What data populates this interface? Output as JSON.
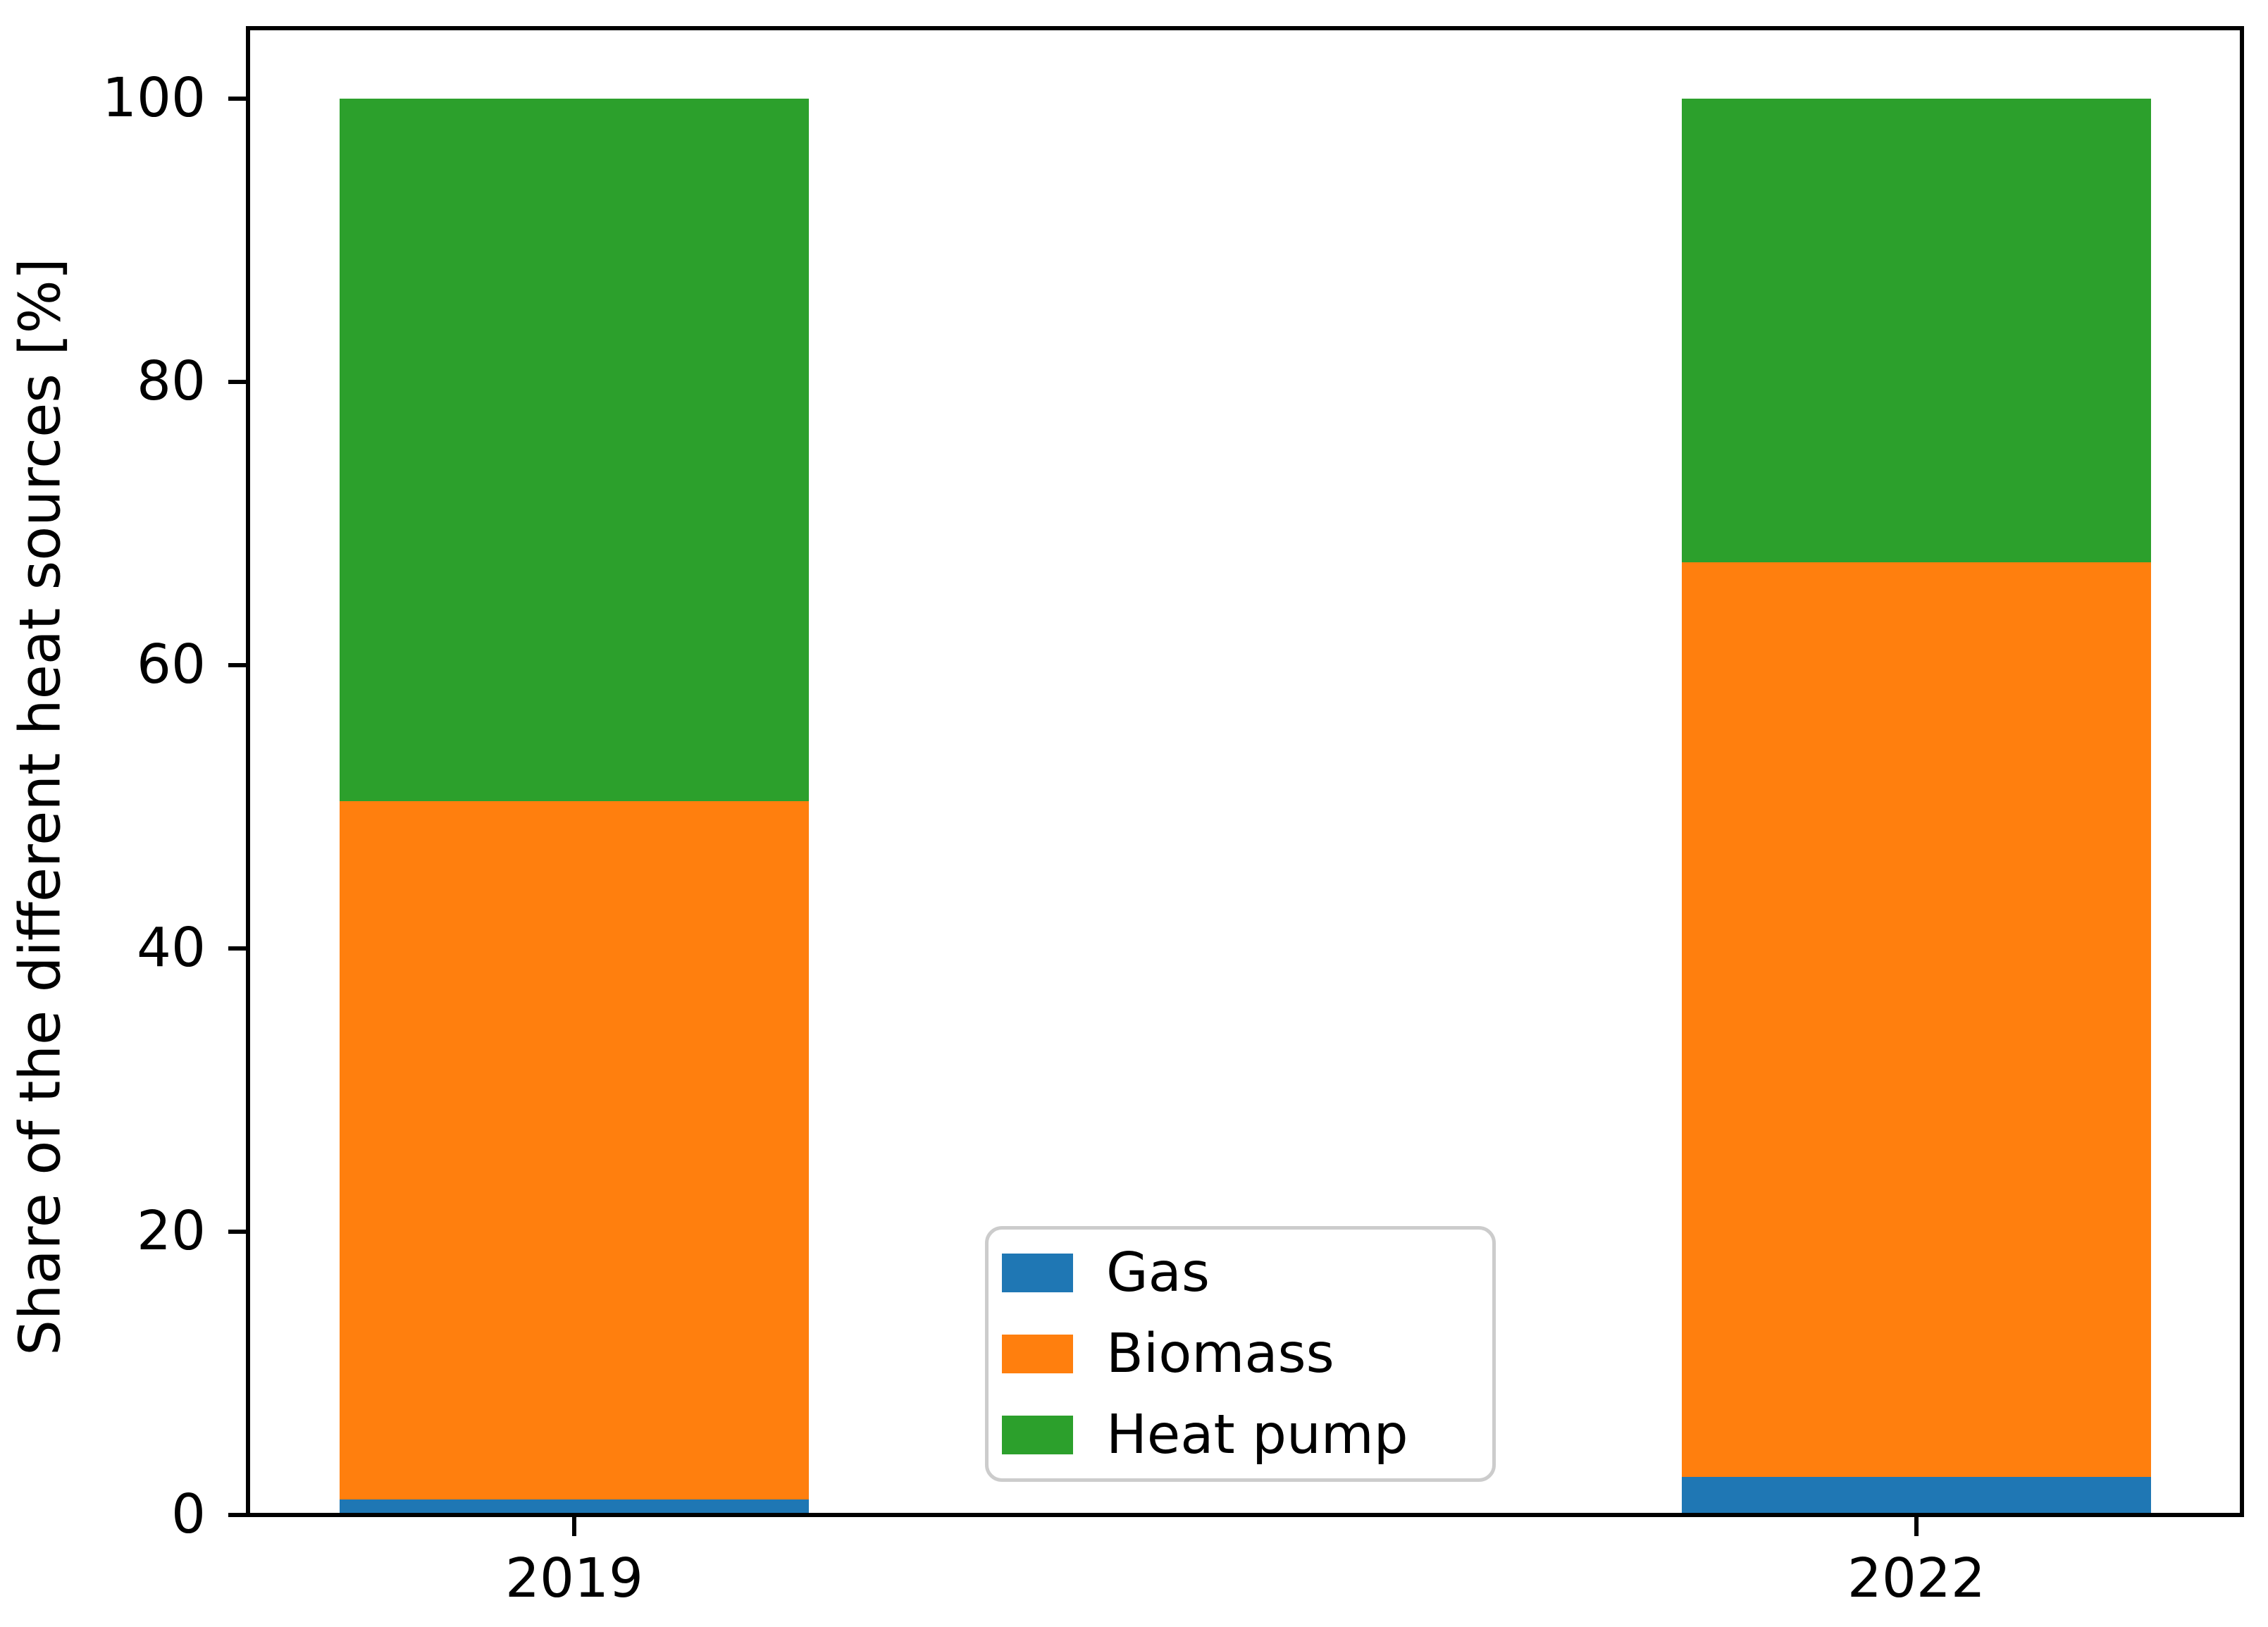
{
  "chart_data": {
    "type": "bar",
    "stacked": true,
    "title": "",
    "xlabel": "",
    "ylabel": "Share of the different heat sources [%]",
    "categories": [
      "2019",
      "2022"
    ],
    "series": [
      {
        "name": "Gas",
        "color": "#1f77b4",
        "values": [
          1.1,
          2.7
        ]
      },
      {
        "name": "Biomass",
        "color": "#ff7f0e",
        "values": [
          49.3,
          64.6
        ]
      },
      {
        "name": "Heat pump",
        "color": "#2ca02c",
        "values": [
          49.6,
          32.7
        ]
      }
    ],
    "yticks": [
      0,
      20,
      40,
      60,
      80,
      100
    ],
    "ylim": [
      0,
      105
    ],
    "grid": false,
    "legend_position": "lower center",
    "axis_color": "#000000",
    "legend_border_color": "#cccccc"
  }
}
